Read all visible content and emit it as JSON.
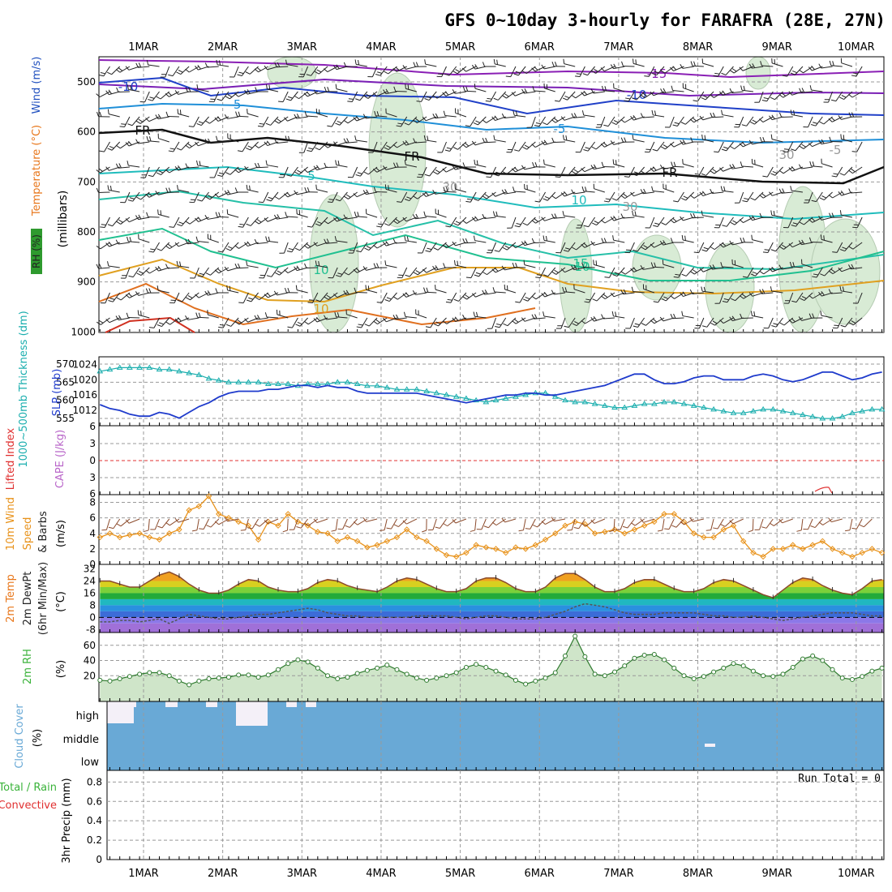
{
  "title": "GFS 0~10day 3-hourly for FARAFRA (28E, 27N)",
  "dates": [
    "1MAR",
    "2MAR",
    "3MAR",
    "4MAR",
    "5MAR",
    "6MAR",
    "7MAR",
    "8MAR",
    "9MAR",
    "10MAR"
  ],
  "colors": {
    "rh": "#2e9a2e",
    "temp_label": "#e8761a",
    "wind_label": "#1f4fbf",
    "slp": "#1f3bcc",
    "thickness": "#1aaeae",
    "cape": "#b966c9",
    "lifted": "#e03030",
    "wind10": "#e8921a",
    "rh2m": "#3ab33a",
    "cloud": "#69a9d6",
    "precip_total": "#3ab33a",
    "precip_conv": "#e03030"
  },
  "panels": {
    "upper": {
      "ylabel_parts": [
        "RH (%)",
        "Temperature (°C)",
        "Wind (m/s)"
      ],
      "ylabel_right": "(millibars)",
      "yticks": [
        "500",
        "600",
        "700",
        "800",
        "900",
        "1000"
      ],
      "contour_labels": [
        "-15",
        "-10",
        "-10",
        "-5",
        "-5",
        "FR",
        "FR",
        "FR",
        "-5",
        "5",
        "10",
        "10",
        "15",
        "10",
        "10",
        "30",
        "30",
        "30"
      ]
    },
    "pressure": {
      "ylabel_left": "1000~500mb Thickness (dm)",
      "ylabel_right": "SLP (mb)",
      "yticks_left": [
        "570",
        "565",
        "560",
        "555"
      ],
      "yticks_right": [
        "1024",
        "1020",
        "1016",
        "1012"
      ]
    },
    "instability": {
      "ylabel_left": "Lifted Index",
      "ylabel_right": "CAPE (J/kg)",
      "yticks": [
        "6",
        "3",
        "0",
        "3",
        "6"
      ]
    },
    "wind10m": {
      "ylabel_parts": [
        "10m Wind",
        "Speed",
        "& Barbs"
      ],
      "ylabel_unit": "(m/s)",
      "yticks": [
        "8",
        "6",
        "4",
        "2",
        "0"
      ]
    },
    "temp2m": {
      "ylabel_parts": [
        "2m Temp",
        "2m DewPt",
        "(6hr Min/Max)"
      ],
      "ylabel_unit": "(°C)",
      "yticks": [
        "32",
        "24",
        "16",
        "8",
        "0",
        "-8"
      ]
    },
    "rh2m": {
      "ylabel": "2m RH",
      "ylabel_unit": "(%)",
      "yticks": [
        "60",
        "40",
        "20"
      ]
    },
    "cloud": {
      "ylabel": "Cloud Cover",
      "ylabel_unit": "(%)",
      "levels": [
        "high",
        "middle",
        "low"
      ]
    },
    "precip": {
      "ylabel_parts": [
        "Total / Rain",
        "Convective"
      ],
      "ylabel_right": "3hr Precip (mm)",
      "yticks": [
        "0.8",
        "0.6",
        "0.4",
        "0.2",
        "0"
      ],
      "run_total": "Run Total = 0"
    }
  },
  "chart_data": [
    {
      "type": "line",
      "title": "1000~500mb Thickness / SLP",
      "series": [
        {
          "name": "SLP (mb)",
          "color": "#1f3bcc",
          "values": [
            1013.5,
            1012.5,
            1012,
            1011,
            1010.5,
            1010.5,
            1011.5,
            1011,
            1010,
            1011.5,
            1013,
            1014,
            1015.5,
            1016.5,
            1017,
            1017,
            1017,
            1017.5,
            1017.5,
            1018,
            1018.5,
            1018.5,
            1018,
            1018.5,
            1018,
            1018,
            1017,
            1016.5,
            1016.5,
            1016.5,
            1016.5,
            1016.5,
            1016.5,
            1016,
            1015.5,
            1015,
            1014.5,
            1014,
            1014.5,
            1015,
            1015.5,
            1016,
            1016,
            1016.5,
            1016.5,
            1016,
            1016,
            1016.5,
            1017,
            1017.5,
            1018,
            1018.5,
            1019.5,
            1020.5,
            1021.5,
            1021.5,
            1020,
            1019,
            1019,
            1019.5,
            1020.5,
            1021,
            1021,
            1020,
            1020,
            1020,
            1021,
            1021.5,
            1021,
            1020,
            1019.5,
            1020,
            1021,
            1022,
            1022,
            1021,
            1020,
            1020.5,
            1021.5,
            1022,
            1022,
            1023,
            1023.5
          ]
        },
        {
          "name": "1000~500mb Thickness (dm)",
          "color": "#1aaeae",
          "values": [
            568,
            568.5,
            569,
            569,
            569,
            569,
            568.5,
            568.5,
            568,
            567.5,
            567,
            566,
            565.5,
            565,
            565,
            565,
            565,
            564.5,
            564.5,
            564.5,
            564,
            564.5,
            564.5,
            564.5,
            565,
            565,
            564.5,
            564,
            564,
            563.5,
            563,
            563,
            563,
            562.5,
            562,
            561.5,
            561,
            560.5,
            560,
            559.5,
            560,
            560.5,
            561,
            561.5,
            562,
            562,
            561,
            560,
            559.5,
            559.5,
            559,
            558.5,
            558,
            558,
            558.5,
            559,
            559,
            559.5,
            559.5,
            559,
            558.5,
            558,
            557.5,
            557,
            556.5,
            556.5,
            557,
            557.5,
            557.5,
            557,
            556.5,
            556,
            555.5,
            555,
            555,
            555.5,
            556.5,
            557,
            557.5,
            557.5,
            558,
            558,
            558
          ]
        }
      ],
      "ylim_left": [
        553,
        572
      ],
      "ylim_right": [
        1008,
        1026
      ]
    },
    {
      "type": "line",
      "title": "10m Wind Speed",
      "series": [
        {
          "name": "10m Wind Speed (m/s)",
          "color": "#e8921a",
          "values": [
            3.5,
            4,
            3.5,
            3.8,
            4,
            3.5,
            3.2,
            4,
            4.5,
            7,
            7.5,
            8.8,
            6.5,
            6,
            5.5,
            5,
            3.2,
            5.5,
            5,
            6.5,
            5.5,
            5,
            4.2,
            4,
            3,
            3.5,
            3,
            2.2,
            2.5,
            3,
            3.5,
            4.5,
            3.5,
            3,
            2,
            1.2,
            1,
            1.5,
            2.5,
            2.2,
            2,
            1.5,
            2.2,
            2,
            2.5,
            3.2,
            4,
            5,
            5.5,
            5.2,
            4,
            4.2,
            4.5,
            4,
            4.5,
            5,
            5.5,
            6.5,
            6.5,
            5.5,
            4,
            3.5,
            3.5,
            4.5,
            5,
            3,
            1.5,
            1,
            2,
            2,
            2.5,
            2,
            2.5,
            3,
            2,
            1.5,
            1,
            1.5,
            2,
            1.5,
            1,
            2,
            1.5
          ]
        }
      ],
      "ylim": [
        0,
        9
      ]
    },
    {
      "type": "area",
      "title": "2m Temp / DewPt",
      "series": [
        {
          "name": "2m Temp (°C)",
          "color": "#8b4a2b",
          "values": [
            24,
            24,
            22,
            20,
            20,
            24,
            28,
            30,
            27,
            22,
            18,
            16,
            16,
            18,
            22,
            25,
            24,
            20,
            18,
            17,
            17,
            19,
            23,
            25,
            24,
            21,
            19,
            18,
            17,
            20,
            24,
            26,
            25,
            22,
            19,
            17,
            17,
            19,
            24,
            26,
            26,
            23,
            19,
            17,
            17,
            20,
            26,
            29,
            29,
            25,
            20,
            17,
            17,
            19,
            23,
            25,
            25,
            22,
            19,
            17,
            17,
            19,
            23,
            25,
            24,
            21,
            18,
            15,
            13,
            18,
            23,
            26,
            25,
            21,
            18,
            16,
            15,
            19,
            24,
            25,
            24,
            20,
            19
          ]
        },
        {
          "name": "2m DewPt (°C)",
          "color": "#6a6a6a",
          "values": [
            -3,
            -3,
            -2,
            -2,
            -3,
            -2,
            -1,
            -4,
            -1,
            2,
            1,
            0,
            -1,
            -1,
            0,
            1,
            2,
            2,
            3,
            4,
            5,
            6,
            5,
            3,
            2,
            1,
            1,
            0,
            0,
            0,
            0,
            0,
            1,
            1,
            1,
            1,
            0,
            -1,
            0,
            1,
            1,
            0,
            -1,
            -1,
            -1,
            0,
            2,
            4,
            7,
            9,
            8,
            7,
            5,
            3,
            2,
            2,
            2,
            3,
            3,
            3,
            3,
            2,
            1,
            1,
            0,
            0,
            1,
            0,
            -1,
            -2,
            -1,
            0,
            1,
            2,
            3,
            3,
            3,
            2,
            1,
            1,
            0,
            0,
            0
          ]
        }
      ],
      "ylim": [
        -8,
        32
      ]
    },
    {
      "type": "area",
      "title": "2m RH",
      "series": [
        {
          "name": "2m RH (%)",
          "color": "#3ab33a",
          "values": [
            14,
            13,
            16,
            19,
            22,
            24,
            24,
            20,
            13,
            8,
            13,
            16,
            17,
            18,
            21,
            21,
            18,
            21,
            28,
            36,
            41,
            38,
            30,
            20,
            16,
            18,
            23,
            27,
            30,
            34,
            28,
            22,
            17,
            14,
            17,
            20,
            24,
            31,
            35,
            31,
            26,
            21,
            14,
            9,
            13,
            17,
            24,
            46,
            72,
            45,
            22,
            20,
            25,
            33,
            43,
            47,
            48,
            41,
            30,
            20,
            16,
            19,
            25,
            30,
            36,
            33,
            26,
            20,
            19,
            22,
            31,
            42,
            46,
            40,
            28,
            17,
            15,
            19,
            26,
            30,
            31,
            28,
            25
          ]
        }
      ],
      "ylim": [
        0,
        80
      ]
    },
    {
      "type": "line",
      "title": "3hr Precip",
      "series": [
        {
          "name": "Total / Rain",
          "color": "#3ab33a",
          "values": [
            0,
            0,
            0,
            0,
            0,
            0,
            0,
            0,
            0,
            0
          ]
        },
        {
          "name": "Convective",
          "color": "#e03030",
          "values": [
            0,
            0,
            0,
            0,
            0,
            0,
            0,
            0,
            0,
            0
          ]
        }
      ],
      "ylim": [
        0,
        1
      ],
      "annotation": "Run Total = 0"
    }
  ]
}
